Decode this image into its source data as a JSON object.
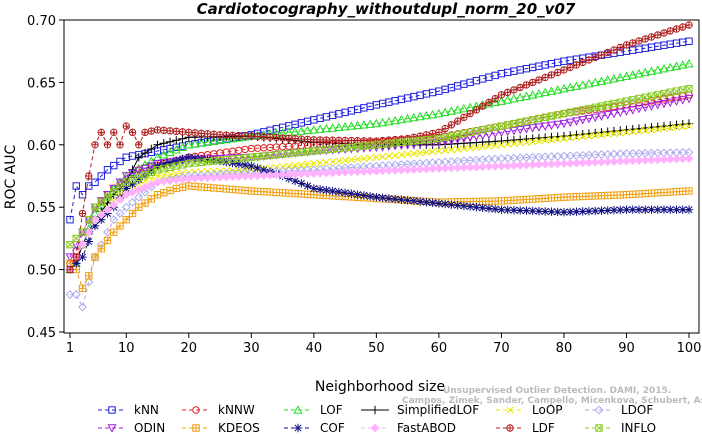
{
  "chart_data": {
    "type": "line",
    "title": "Cardiotocography_withoutdupl_norm_20_v07",
    "xlabel": "Neighborhood size",
    "ylabel": "ROC AUC",
    "xlim": [
      1,
      100
    ],
    "ylim": [
      0.45,
      0.7
    ],
    "xticks": [
      1,
      10,
      20,
      30,
      40,
      50,
      60,
      70,
      80,
      90,
      100
    ],
    "yticks": [
      0.45,
      0.5,
      0.55,
      0.6,
      0.65,
      0.7
    ],
    "ytick_labels": [
      "0.45",
      "0.50",
      "0.55",
      "0.60",
      "0.65",
      "0.70"
    ],
    "grid": false,
    "legend_position": "bottom",
    "series": [
      {
        "name": "kNN",
        "color": "#1f1fe0",
        "marker": "square",
        "dash": "4,3",
        "points": [
          [
            1,
            0.54
          ],
          [
            2,
            0.567
          ],
          [
            3,
            0.56
          ],
          [
            4,
            0.567
          ],
          [
            5,
            0.57
          ],
          [
            7,
            0.58
          ],
          [
            10,
            0.59
          ],
          [
            13,
            0.593
          ],
          [
            16,
            0.596
          ],
          [
            20,
            0.6
          ],
          [
            25,
            0.604
          ],
          [
            30,
            0.608
          ],
          [
            40,
            0.62
          ],
          [
            50,
            0.632
          ],
          [
            60,
            0.643
          ],
          [
            70,
            0.657
          ],
          [
            80,
            0.667
          ],
          [
            90,
            0.675
          ],
          [
            100,
            0.683
          ]
        ]
      },
      {
        "name": "kNNW",
        "color": "#e02020",
        "marker": "circle",
        "dash": "4,3",
        "points": [
          [
            1,
            0.505
          ],
          [
            2,
            0.515
          ],
          [
            3,
            0.53
          ],
          [
            5,
            0.55
          ],
          [
            8,
            0.565
          ],
          [
            12,
            0.58
          ],
          [
            16,
            0.585
          ],
          [
            20,
            0.59
          ],
          [
            30,
            0.597
          ],
          [
            40,
            0.6
          ],
          [
            50,
            0.602
          ],
          [
            60,
            0.606
          ],
          [
            70,
            0.615
          ],
          [
            80,
            0.625
          ],
          [
            90,
            0.632
          ],
          [
            100,
            0.64
          ]
        ]
      },
      {
        "name": "LOF",
        "color": "#22dd22",
        "marker": "triangle",
        "dash": "4,3",
        "points": [
          [
            1,
            0.5
          ],
          [
            2,
            0.505
          ],
          [
            3,
            0.52
          ],
          [
            5,
            0.545
          ],
          [
            8,
            0.565
          ],
          [
            10,
            0.575
          ],
          [
            15,
            0.59
          ],
          [
            20,
            0.6
          ],
          [
            30,
            0.607
          ],
          [
            40,
            0.612
          ],
          [
            50,
            0.617
          ],
          [
            60,
            0.625
          ],
          [
            70,
            0.635
          ],
          [
            80,
            0.645
          ],
          [
            90,
            0.655
          ],
          [
            100,
            0.665
          ]
        ]
      },
      {
        "name": "SimplifiedLOF",
        "color": "#000000",
        "marker": "plus",
        "dash": "none",
        "points": [
          [
            1,
            0.5
          ],
          [
            2,
            0.505
          ],
          [
            3,
            0.52
          ],
          [
            5,
            0.54
          ],
          [
            8,
            0.56
          ],
          [
            10,
            0.57
          ],
          [
            12,
            0.59
          ],
          [
            15,
            0.6
          ],
          [
            20,
            0.606
          ],
          [
            30,
            0.607
          ],
          [
            40,
            0.602
          ],
          [
            50,
            0.6
          ],
          [
            60,
            0.6
          ],
          [
            70,
            0.603
          ],
          [
            80,
            0.607
          ],
          [
            90,
            0.612
          ],
          [
            100,
            0.617
          ]
        ]
      },
      {
        "name": "LoOP",
        "color": "#e8e800",
        "marker": "x",
        "dash": "4,3",
        "points": [
          [
            1,
            0.5
          ],
          [
            3,
            0.52
          ],
          [
            5,
            0.54
          ],
          [
            10,
            0.565
          ],
          [
            15,
            0.575
          ],
          [
            20,
            0.578
          ],
          [
            30,
            0.58
          ],
          [
            40,
            0.585
          ],
          [
            50,
            0.59
          ],
          [
            60,
            0.595
          ],
          [
            70,
            0.6
          ],
          [
            80,
            0.605
          ],
          [
            90,
            0.61
          ],
          [
            100,
            0.615
          ]
        ]
      },
      {
        "name": "LDOF",
        "color": "#aaaaee",
        "marker": "diamond",
        "dash": "4,3",
        "points": [
          [
            1,
            0.48
          ],
          [
            2,
            0.48
          ],
          [
            3,
            0.47
          ],
          [
            4,
            0.49
          ],
          [
            5,
            0.51
          ],
          [
            8,
            0.54
          ],
          [
            10,
            0.55
          ],
          [
            15,
            0.57
          ],
          [
            20,
            0.575
          ],
          [
            30,
            0.578
          ],
          [
            40,
            0.58
          ],
          [
            50,
            0.583
          ],
          [
            60,
            0.586
          ],
          [
            70,
            0.589
          ],
          [
            80,
            0.591
          ],
          [
            90,
            0.593
          ],
          [
            100,
            0.594
          ]
        ]
      },
      {
        "name": "ODIN",
        "color": "#a020e0",
        "marker": "triangle-down",
        "dash": "4,3",
        "points": [
          [
            1,
            0.51
          ],
          [
            3,
            0.53
          ],
          [
            5,
            0.55
          ],
          [
            10,
            0.575
          ],
          [
            15,
            0.585
          ],
          [
            20,
            0.588
          ],
          [
            30,
            0.59
          ],
          [
            40,
            0.595
          ],
          [
            50,
            0.598
          ],
          [
            60,
            0.602
          ],
          [
            70,
            0.61
          ],
          [
            80,
            0.617
          ],
          [
            90,
            0.627
          ],
          [
            100,
            0.637
          ]
        ]
      },
      {
        "name": "KDEOS",
        "color": "#f0a010",
        "marker": "square-cross",
        "dash": "4,3",
        "points": [
          [
            1,
            0.505
          ],
          [
            2,
            0.5
          ],
          [
            3,
            0.485
          ],
          [
            4,
            0.495
          ],
          [
            5,
            0.51
          ],
          [
            8,
            0.53
          ],
          [
            10,
            0.54
          ],
          [
            12,
            0.55
          ],
          [
            15,
            0.56
          ],
          [
            18,
            0.565
          ],
          [
            20,
            0.567
          ],
          [
            25,
            0.565
          ],
          [
            30,
            0.563
          ],
          [
            40,
            0.56
          ],
          [
            50,
            0.557
          ],
          [
            60,
            0.554
          ],
          [
            70,
            0.555
          ],
          [
            80,
            0.558
          ],
          [
            90,
            0.56
          ],
          [
            100,
            0.563
          ]
        ]
      },
      {
        "name": "COF",
        "color": "#101080",
        "marker": "star",
        "dash": "4,3",
        "points": [
          [
            1,
            0.5
          ],
          [
            2,
            0.505
          ],
          [
            3,
            0.51
          ],
          [
            5,
            0.535
          ],
          [
            8,
            0.55
          ],
          [
            10,
            0.565
          ],
          [
            15,
            0.583
          ],
          [
            20,
            0.59
          ],
          [
            25,
            0.587
          ],
          [
            30,
            0.583
          ],
          [
            35,
            0.575
          ],
          [
            40,
            0.565
          ],
          [
            50,
            0.558
          ],
          [
            60,
            0.553
          ],
          [
            70,
            0.548
          ],
          [
            80,
            0.546
          ],
          [
            90,
            0.548
          ],
          [
            100,
            0.548
          ]
        ]
      },
      {
        "name": "FastABOD",
        "color": "#ffb0ff",
        "marker": "diamond-filled",
        "dash": "4,3",
        "points": [
          [
            1,
            0.5
          ],
          [
            3,
            0.52
          ],
          [
            5,
            0.54
          ],
          [
            10,
            0.56
          ],
          [
            15,
            0.57
          ],
          [
            20,
            0.573
          ],
          [
            30,
            0.575
          ],
          [
            40,
            0.577
          ],
          [
            50,
            0.579
          ],
          [
            60,
            0.581
          ],
          [
            70,
            0.583
          ],
          [
            80,
            0.585
          ],
          [
            90,
            0.587
          ],
          [
            100,
            0.589
          ]
        ]
      },
      {
        "name": "LDF",
        "color": "#b02020",
        "marker": "circle-plus",
        "dash": "4,3",
        "points": [
          [
            1,
            0.5
          ],
          [
            2,
            0.51
          ],
          [
            3,
            0.545
          ],
          [
            4,
            0.575
          ],
          [
            5,
            0.6
          ],
          [
            6,
            0.61
          ],
          [
            7,
            0.6
          ],
          [
            8,
            0.61
          ],
          [
            9,
            0.6
          ],
          [
            10,
            0.615
          ],
          [
            11,
            0.61
          ],
          [
            12,
            0.6
          ],
          [
            13,
            0.61
          ],
          [
            15,
            0.612
          ],
          [
            20,
            0.61
          ],
          [
            25,
            0.608
          ],
          [
            30,
            0.607
          ],
          [
            40,
            0.604
          ],
          [
            50,
            0.603
          ],
          [
            55,
            0.605
          ],
          [
            60,
            0.61
          ],
          [
            65,
            0.625
          ],
          [
            70,
            0.64
          ],
          [
            80,
            0.66
          ],
          [
            90,
            0.68
          ],
          [
            100,
            0.696
          ]
        ]
      },
      {
        "name": "INFLO",
        "color": "#88cc22",
        "marker": "square-x",
        "dash": "4,3",
        "points": [
          [
            1,
            0.52
          ],
          [
            3,
            0.53
          ],
          [
            5,
            0.55
          ],
          [
            10,
            0.57
          ],
          [
            15,
            0.58
          ],
          [
            20,
            0.585
          ],
          [
            30,
            0.59
          ],
          [
            40,
            0.595
          ],
          [
            50,
            0.6
          ],
          [
            60,
            0.605
          ],
          [
            70,
            0.615
          ],
          [
            80,
            0.625
          ],
          [
            90,
            0.635
          ],
          [
            100,
            0.645
          ]
        ]
      }
    ]
  },
  "watermark": {
    "line1": "Unsupervised Outlier Detection. DAMI, 2015.",
    "line2": "Campos, Zimek, Sander, Campello, Micenkova, Schubert, Assent, Houle"
  }
}
